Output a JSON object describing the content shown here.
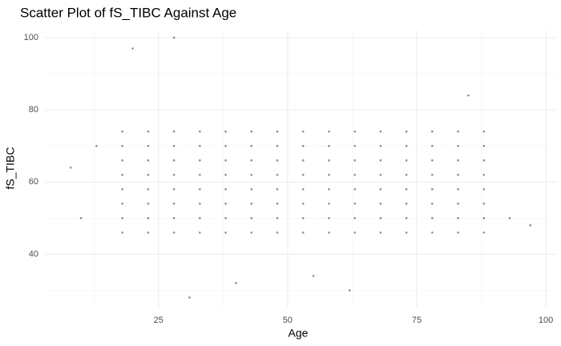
{
  "chart_data": {
    "type": "scatter",
    "title": "Scatter Plot of fS_TIBC Against Age",
    "x_label": "Age",
    "y_label": "fS_TIBC",
    "xlim": [
      3,
      102
    ],
    "ylim": [
      25,
      102
    ],
    "xticks": [
      25,
      50,
      75,
      100
    ],
    "yticks": [
      40,
      60,
      80,
      100
    ],
    "minor_xticks": [
      12.5,
      37.5,
      62.5,
      87.5
    ],
    "minor_yticks": [
      30,
      50,
      70,
      90
    ],
    "grid": true,
    "point_color": "#000000",
    "point_opacity": 0.45,
    "x": [
      18,
      23,
      28,
      33,
      38,
      43,
      48,
      53,
      58,
      63,
      68,
      73,
      78,
      83,
      88,
      18,
      23,
      28,
      33,
      38,
      43,
      48,
      53,
      58,
      63,
      68,
      73,
      78,
      83,
      88,
      18,
      23,
      28,
      33,
      38,
      43,
      48,
      53,
      58,
      63,
      68,
      73,
      78,
      83,
      88,
      18,
      23,
      28,
      33,
      38,
      43,
      48,
      53,
      58,
      63,
      68,
      73,
      78,
      83,
      88,
      18,
      23,
      28,
      33,
      38,
      43,
      48,
      53,
      58,
      63,
      68,
      73,
      78,
      83,
      88,
      18,
      23,
      28,
      33,
      38,
      43,
      48,
      53,
      58,
      63,
      68,
      73,
      78,
      83,
      88,
      18,
      23,
      28,
      33,
      38,
      43,
      48,
      53,
      58,
      63,
      68,
      73,
      78,
      83,
      88,
      18,
      23,
      28,
      33,
      38,
      43,
      48,
      53,
      58,
      63,
      68,
      73,
      78,
      83,
      88,
      8,
      10,
      28,
      20,
      31,
      55,
      62,
      93,
      97,
      40,
      85,
      13
    ],
    "y": [
      46,
      46,
      46,
      46,
      46,
      46,
      46,
      46,
      46,
      46,
      46,
      46,
      46,
      46,
      46,
      50,
      50,
      50,
      50,
      50,
      50,
      50,
      50,
      50,
      50,
      50,
      50,
      50,
      50,
      50,
      54,
      54,
      54,
      54,
      54,
      54,
      54,
      54,
      54,
      54,
      54,
      54,
      54,
      54,
      54,
      58,
      58,
      58,
      58,
      58,
      58,
      58,
      58,
      58,
      58,
      58,
      58,
      58,
      58,
      58,
      62,
      62,
      62,
      62,
      62,
      62,
      62,
      62,
      62,
      62,
      62,
      62,
      62,
      62,
      62,
      66,
      66,
      66,
      66,
      66,
      66,
      66,
      66,
      66,
      66,
      66,
      66,
      66,
      66,
      66,
      70,
      70,
      70,
      70,
      70,
      70,
      70,
      70,
      70,
      70,
      70,
      70,
      70,
      70,
      70,
      74,
      74,
      74,
      74,
      74,
      74,
      74,
      74,
      74,
      74,
      74,
      74,
      74,
      74,
      74,
      64,
      50,
      100,
      97,
      28,
      34,
      30,
      50,
      48,
      32,
      84,
      70
    ]
  }
}
